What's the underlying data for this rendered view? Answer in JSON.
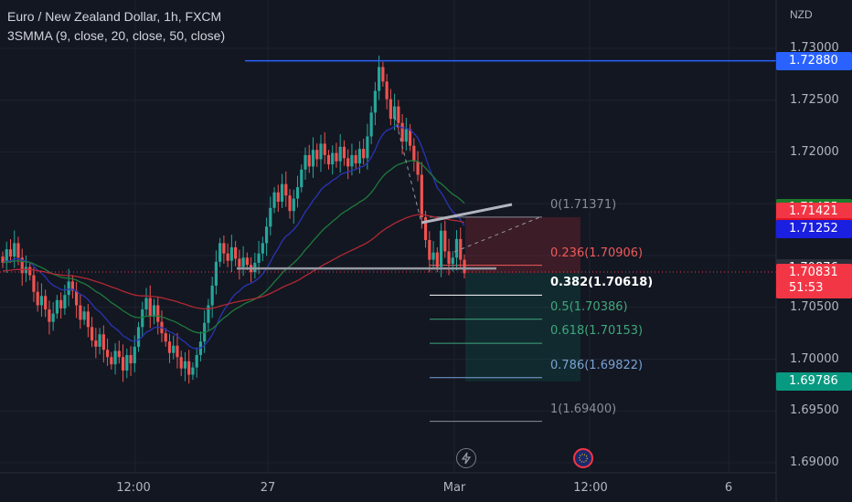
{
  "header": {
    "title": "Euro / New Zealand Dollar, 1h, FXCM",
    "indicator": "3SMMA (9, close, 20, close, 50, close)"
  },
  "axis": {
    "currency": "NZD"
  },
  "colors": {
    "background": "#131722",
    "up": "#26a69a",
    "down": "#ef5350",
    "sma9": "#2934b5",
    "sma20": "#1e7a3c",
    "sma50": "#b22833",
    "resistance": "#2962ff"
  },
  "chart_data": {
    "type": "candlestick",
    "title": "Euro / New Zealand Dollar, 1h, FXCM",
    "ylim": [
      1.6894,
      1.7322
    ],
    "y_ticks": [
      "1.73000",
      "1.72500",
      "1.72000",
      "1.70500",
      "1.70000",
      "1.69500",
      "1.69000"
    ],
    "x_ticks": [
      "12:00",
      "27",
      "Mar",
      "12:00",
      "6"
    ],
    "price_tags": [
      {
        "value": "1.72880",
        "color": "#2962ff",
        "text_color": "#ffffff"
      },
      {
        "value": "1.71455",
        "color": "#1e7a2a",
        "text_color": "#ffffff"
      },
      {
        "value": "1.71421",
        "color": "#f23645",
        "text_color": "#ffffff"
      },
      {
        "value": "1.71277",
        "color": "#e8121d",
        "text_color": "#ffffff"
      },
      {
        "value": "1.71252",
        "color": "#1b1fe0",
        "text_color": "#ffffff"
      },
      {
        "value": "1.70876",
        "color": "#2a2e39",
        "text_color": "#ffffff"
      },
      {
        "value": "1.70831",
        "sub": "51:53",
        "color": "#f23645",
        "text_color": "#ffffff"
      },
      {
        "value": "1.69786",
        "color": "#089981",
        "text_color": "#ffffff"
      }
    ],
    "fibonacci": [
      {
        "label": "0(1.71371)",
        "value": 1.71371,
        "color": "#8a8d96"
      },
      {
        "label": "0.236(1.70906)",
        "value": 1.70906,
        "color": "#f05a5a"
      },
      {
        "label": "0.382(1.70618)",
        "value": 1.70618,
        "color": "#ffffff"
      },
      {
        "label": "0.5(1.70386)",
        "value": 1.70386,
        "color": "#3fa87b"
      },
      {
        "label": "0.618(1.70153)",
        "value": 1.70153,
        "color": "#3fa87b"
      },
      {
        "label": "0.786(1.69822)",
        "value": 1.69822,
        "color": "#7aa2d6"
      },
      {
        "label": "1(1.69400)",
        "value": 1.694,
        "color": "#8a8d96"
      }
    ],
    "resistance_level": 1.7288,
    "support_level": 1.70876,
    "last_price": 1.70831,
    "ohlc_closes": [
      1.7093,
      1.7106,
      1.7099,
      1.7112,
      1.7098,
      1.7083,
      1.7089,
      1.7081,
      1.7065,
      1.7052,
      1.7061,
      1.7048,
      1.7036,
      1.7044,
      1.7057,
      1.7049,
      1.7062,
      1.7075,
      1.7066,
      1.7052,
      1.7038,
      1.7046,
      1.7031,
      1.7018,
      1.7012,
      1.7024,
      1.7009,
      1.7002,
      1.6995,
      1.7008,
      1.7002,
      1.6989,
      1.7004,
      1.6996,
      1.7012,
      1.7031,
      1.7048,
      1.7059,
      1.7041,
      1.7052,
      1.7036,
      1.7025,
      1.7017,
      1.7006,
      1.7013,
      1.7002,
      1.6991,
      1.6998,
      1.6985,
      1.6992,
      1.7004,
      1.7017,
      1.7035,
      1.7052,
      1.7071,
      1.7094,
      1.7112,
      1.7102,
      1.7095,
      1.7108,
      1.7097,
      1.7089,
      1.7098,
      1.7091,
      1.7084,
      1.7093,
      1.7102,
      1.7112,
      1.7128,
      1.7146,
      1.7161,
      1.7152,
      1.7169,
      1.7158,
      1.7143,
      1.7155,
      1.7166,
      1.7183,
      1.7197,
      1.7186,
      1.7202,
      1.7193,
      1.7208,
      1.7197,
      1.7188,
      1.7199,
      1.7191,
      1.7205,
      1.7194,
      1.7186,
      1.7197,
      1.7189,
      1.7203,
      1.7194,
      1.7215,
      1.7238,
      1.7259,
      1.7282,
      1.7268,
      1.7251,
      1.7232,
      1.7244,
      1.7228,
      1.721,
      1.7222,
      1.7206,
      1.7191,
      1.7178,
      1.7137,
      1.7115,
      1.7096,
      1.7103,
      1.7089,
      1.7124,
      1.7104,
      1.7092,
      1.7098,
      1.7116,
      1.7096,
      1.7083
    ]
  },
  "bottom_icons": [
    {
      "name": "lightning-icon",
      "color": "#787b86"
    },
    {
      "name": "flag-eu-icon",
      "color": "#f23645"
    }
  ]
}
